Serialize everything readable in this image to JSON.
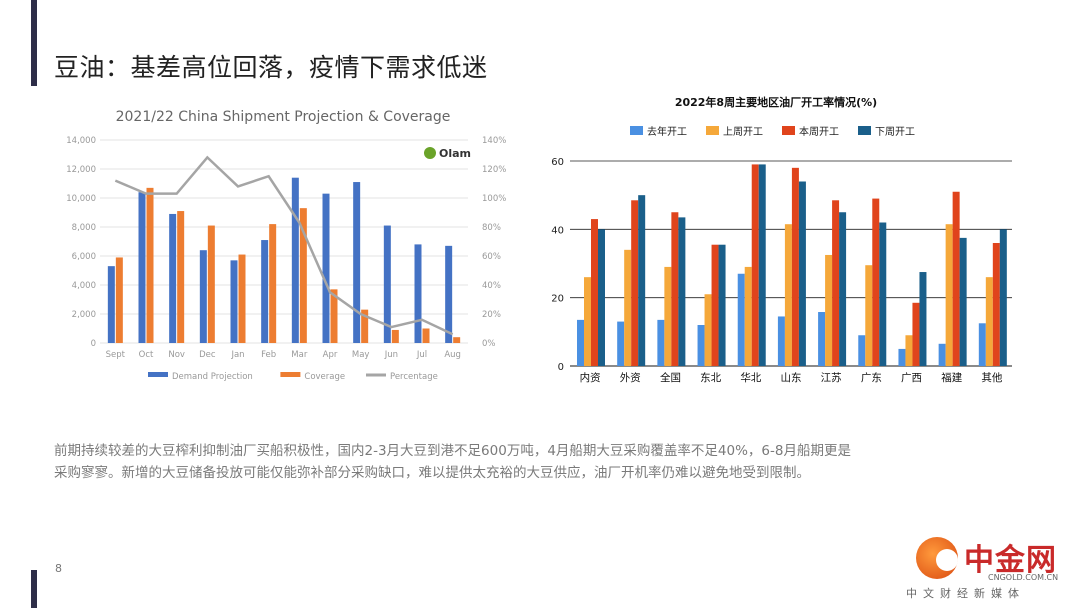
{
  "slide": {
    "title": "豆油：基差高位回落，疫情下需求低迷",
    "body_line1": "前期持续较差的大豆榨利抑制油厂买船积极性，国内2-3月大豆到港不足600万吨，4月船期大豆采购覆盖率不足40%，6-8月船期更是",
    "body_line2": "采购寥寥。新增的大豆储备投放可能仅能弥补部分采购缺口，难以提供太充裕的大豆供应，油厂开机率仍难以避免地受到限制。",
    "page_number": "8",
    "accent_color": "#2e2e48"
  },
  "logo": {
    "cn_name": "中金网",
    "url": "CNGOLD.COM.CN",
    "tagline": "中文财经新媒体"
  },
  "chart_data": [
    {
      "type": "bar",
      "title": "2021/22 China Shipment  Projection & Coverage",
      "brand_label": "Olam",
      "categories": [
        "Sept",
        "Oct",
        "Nov",
        "Dec",
        "Jan",
        "Feb",
        "Mar",
        "Apr",
        "May",
        "Jun",
        "Jul",
        "Aug"
      ],
      "series": [
        {
          "name": "Demand Projection",
          "kind": "bar",
          "axis": "left",
          "color": "#4472c4",
          "values": [
            5300,
            10400,
            8900,
            6400,
            5700,
            7100,
            11400,
            10300,
            11100,
            8100,
            6800,
            6700
          ]
        },
        {
          "name": "Coverage",
          "kind": "bar",
          "axis": "left",
          "color": "#ed7d31",
          "values": [
            5900,
            10700,
            9100,
            8100,
            6100,
            8200,
            9300,
            3700,
            2300,
            900,
            1000,
            400
          ]
        },
        {
          "name": "Percentage",
          "kind": "line",
          "axis": "right",
          "color": "#a5a5a5",
          "values": [
            112,
            103,
            103,
            128,
            108,
            115,
            83,
            35,
            20,
            11,
            16,
            6
          ]
        }
      ],
      "ylim": [
        0,
        14000
      ],
      "yticks": [
        "0",
        "2,000",
        "4,000",
        "6,000",
        "8,000",
        "10,000",
        "12,000",
        "14,000"
      ],
      "y2lim": [
        0,
        140
      ],
      "y2ticks": [
        "0%",
        "20%",
        "40%",
        "60%",
        "80%",
        "100%",
        "120%",
        "140%"
      ],
      "grid": true,
      "legend": "bottom"
    },
    {
      "type": "bar",
      "title": "2022年8周主要地区油厂开工率情况(%)",
      "categories": [
        "内资",
        "外资",
        "全国",
        "东北",
        "华北",
        "山东",
        "江苏",
        "广东",
        "广西",
        "福建",
        "其他"
      ],
      "series": [
        {
          "name": "去年开工",
          "color": "#4a90e2",
          "values": [
            13.5,
            13,
            13.5,
            12,
            27,
            14.5,
            15.8,
            9,
            5,
            6.5,
            12.5
          ]
        },
        {
          "name": "上周开工",
          "color": "#f5a83a",
          "values": [
            26,
            34,
            29,
            21,
            29,
            41.5,
            32.5,
            29.5,
            9,
            41.5,
            26
          ]
        },
        {
          "name": "本周开工",
          "color": "#e0441c",
          "values": [
            43,
            48.5,
            45,
            35.5,
            59,
            58,
            48.5,
            49,
            18.5,
            51,
            36
          ]
        },
        {
          "name": "下周开工",
          "color": "#1a5f8a",
          "values": [
            40,
            50,
            43.5,
            35.5,
            59,
            54,
            45,
            42,
            27.5,
            37.5,
            40
          ]
        }
      ],
      "ylim": [
        0,
        60
      ],
      "yticks": [
        "0",
        "20",
        "40",
        "60"
      ],
      "grid": true,
      "legend": "top"
    }
  ]
}
